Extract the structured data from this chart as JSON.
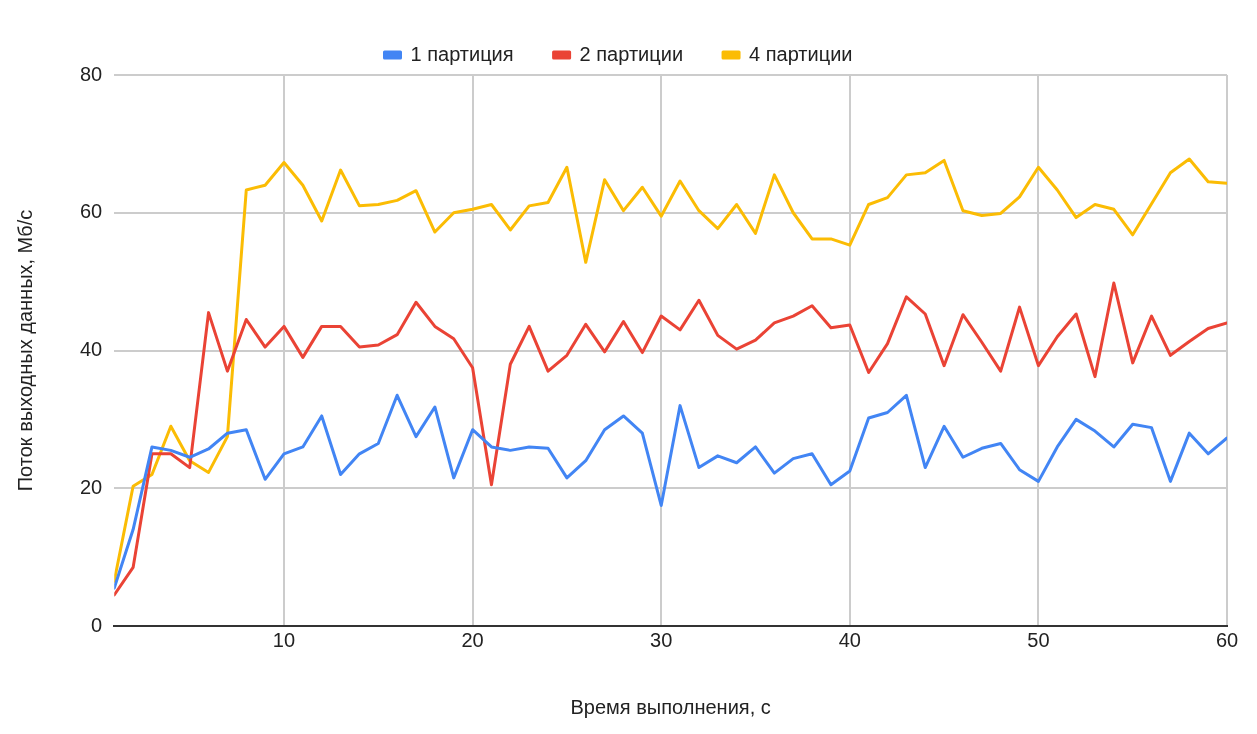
{
  "chart_data": {
    "type": "line",
    "xlabel": "Время выполнения, с",
    "ylabel": "Поток выходных данных, Мб/с",
    "x": [
      1,
      2,
      3,
      4,
      5,
      6,
      7,
      8,
      9,
      10,
      11,
      12,
      13,
      14,
      15,
      16,
      17,
      18,
      19,
      20,
      21,
      22,
      23,
      24,
      25,
      26,
      27,
      28,
      29,
      30,
      31,
      32,
      33,
      34,
      35,
      36,
      37,
      38,
      39,
      40,
      41,
      42,
      43,
      44,
      45,
      46,
      47,
      48,
      49,
      50,
      51,
      52,
      53,
      54,
      55,
      56,
      57,
      58,
      59,
      60
    ],
    "series": [
      {
        "name": "1 партиция",
        "color": "#4285f4",
        "values": [
          5.5,
          14,
          26,
          25.5,
          24.5,
          25.7,
          28,
          28.5,
          21.3,
          25,
          26,
          30.5,
          22,
          25,
          26.5,
          33.5,
          27.5,
          31.8,
          21.5,
          28.5,
          26,
          25.5,
          26,
          25.8,
          21.5,
          24,
          28.5,
          30.5,
          28,
          17.5,
          32,
          23,
          24.7,
          23.7,
          26,
          22.2,
          24.3,
          25,
          20.5,
          22.5,
          30.2,
          31,
          33.5,
          23,
          29,
          24.5,
          25.8,
          26.5,
          22.7,
          21,
          26,
          30,
          28.3,
          26,
          29.3,
          28.8,
          21,
          28,
          25,
          27.3
        ]
      },
      {
        "name": "2 партиции",
        "color": "#ea4335",
        "values": [
          4.5,
          8.5,
          25,
          25,
          23,
          45.5,
          37,
          44.5,
          40.5,
          43.5,
          39,
          43.5,
          43.5,
          40.5,
          40.8,
          42.3,
          47,
          43.5,
          41.7,
          37.5,
          20.5,
          38,
          43.5,
          37,
          39.3,
          43.8,
          39.8,
          44.2,
          39.7,
          45,
          43,
          47.3,
          42.2,
          40.2,
          41.5,
          44,
          45,
          46.5,
          43.3,
          43.7,
          36.8,
          41,
          47.8,
          45.3,
          37.8,
          45.2,
          41.2,
          37,
          46.3,
          37.8,
          42,
          45.3,
          36.2,
          49.8,
          38.2,
          45,
          39.3,
          41.3,
          43.2,
          44
        ]
      },
      {
        "name": "4 партиции",
        "color": "#fbbc04",
        "values": [
          6.5,
          20.3,
          22,
          29,
          24,
          22.3,
          27.5,
          63.3,
          64,
          67.3,
          64,
          58.8,
          66.2,
          61,
          61.2,
          61.8,
          63.2,
          57.2,
          60,
          60.5,
          61.2,
          57.5,
          61,
          61.5,
          66.6,
          52.8,
          64.8,
          60.3,
          63.7,
          59.5,
          64.6,
          60.3,
          57.7,
          61.2,
          57,
          65.5,
          60,
          56.2,
          56.2,
          55.3,
          61.2,
          62.2,
          65.5,
          65.8,
          67.6,
          60.3,
          59.6,
          59.9,
          62.3,
          66.6,
          63.3,
          59.3,
          61.2,
          60.5,
          56.8,
          61.3,
          65.8,
          67.8,
          64.5,
          64.3
        ]
      }
    ],
    "xlim": [
      1,
      60
    ],
    "xticks": [
      10,
      20,
      30,
      40,
      50,
      60
    ],
    "ylim": [
      0,
      80
    ],
    "yticks": [
      0,
      20,
      40,
      60,
      80
    ],
    "grid": true,
    "legend": "top",
    "marker": "none",
    "line_style": "solid"
  }
}
